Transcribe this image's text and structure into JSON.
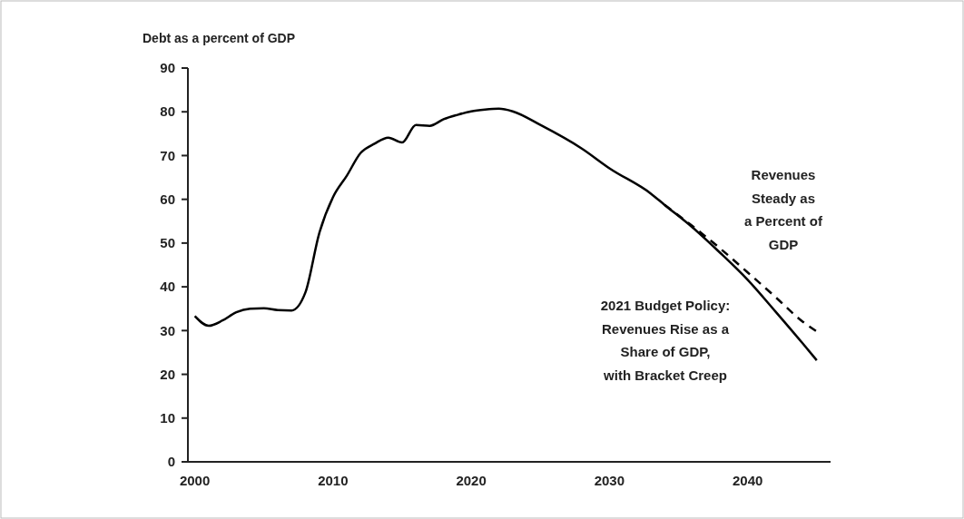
{
  "chart_data": {
    "type": "line",
    "ylabel": "Debt as a percent of GDP",
    "xlim": [
      1999.5,
      2046
    ],
    "xticks": [
      2000,
      2010,
      2020,
      2030,
      2040
    ],
    "ylim": [
      0,
      90
    ],
    "yticks": [
      0,
      10,
      20,
      30,
      40,
      50,
      60,
      70,
      80,
      90
    ],
    "grid": false,
    "marker": "none",
    "series": [
      {
        "name": "2021 Budget Policy:\nRevenues Rise as a\nShare of GDP,\nwith Bracket Creep",
        "color": "#000000",
        "line_style": "solid",
        "x": [
          2000,
          2001,
          2002,
          2003,
          2004,
          2005,
          2006,
          2007,
          2008,
          2009,
          2010,
          2011,
          2012,
          2013,
          2014,
          2015,
          2016,
          2017,
          2018,
          2019,
          2020,
          2021,
          2022,
          2023,
          2025,
          2028,
          2030,
          2033,
          2034,
          2036,
          2038,
          2040,
          2042,
          2044,
          2045
        ],
        "values": [
          33.3,
          31.1,
          32.3,
          34.2,
          35.0,
          35.1,
          34.7,
          34.6,
          38.7,
          52.2,
          60.5,
          65.4,
          70.6,
          72.7,
          74.1,
          73.0,
          77.0,
          76.8,
          78.3,
          79.3,
          80.1,
          80.5,
          80.7,
          80.1,
          77.0,
          71.6,
          67.1,
          61.3,
          58.7,
          53.6,
          47.8,
          41.6,
          34.4,
          27.0,
          23.2
        ]
      },
      {
        "name": "Revenues\nSteady as\na Percent of\nGDP",
        "color": "#000000",
        "line_style": "dashed",
        "x": [
          2034,
          2036,
          2038,
          2040,
          2042,
          2044,
          2045
        ],
        "values": [
          58.7,
          53.9,
          48.8,
          43.3,
          37.7,
          32.0,
          29.8
        ]
      }
    ]
  }
}
